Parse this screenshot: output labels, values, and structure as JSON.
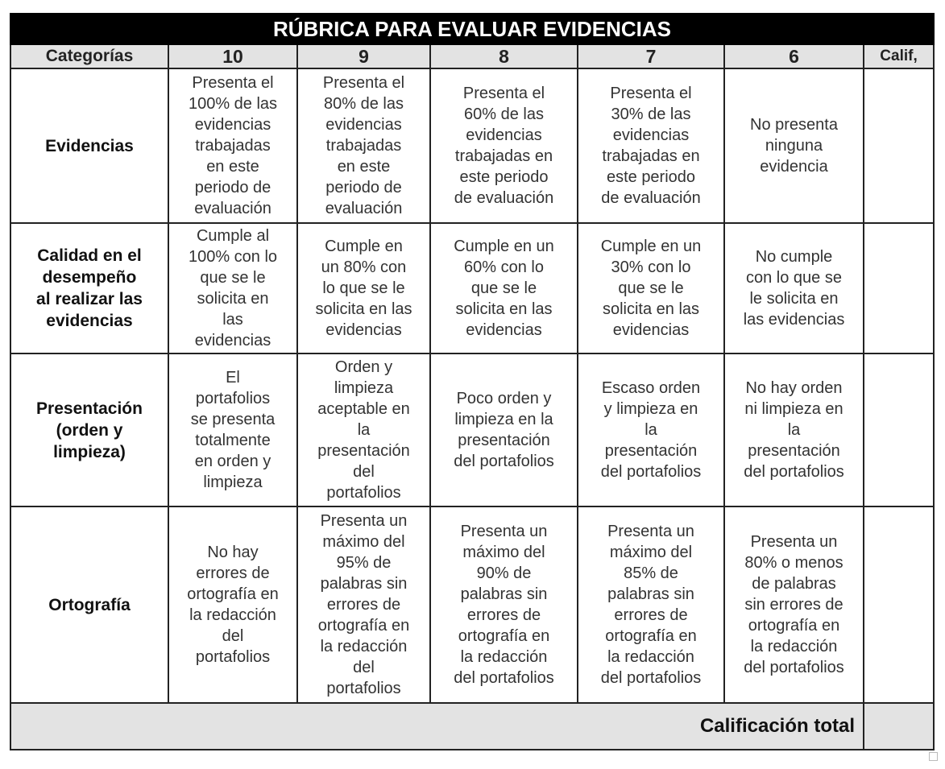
{
  "title": "RÚBRICA PARA EVALUAR EVIDENCIAS",
  "headers": [
    "Categorías",
    "10",
    "9",
    "8",
    "7",
    "6",
    "Calif,"
  ],
  "rows": [
    {
      "category": "Evidencias",
      "cells": [
        "Presenta el\n100% de las\nevidencias\ntrabajadas\nen este\nperiodo de\nevaluación",
        "Presenta el\n80% de las\nevidencias\ntrabajadas\nen este\nperiodo de\nevaluación",
        "Presenta el\n60% de las\nevidencias\ntrabajadas en\neste periodo\nde evaluación",
        "Presenta el\n30% de las\nevidencias\ntrabajadas en\neste periodo\nde evaluación",
        "No presenta\nninguna\nevidencia"
      ],
      "calif": ""
    },
    {
      "category": "Calidad en el\ndesempeño\nal realizar las\nevidencias",
      "cells": [
        "Cumple al\n100% con lo\nque se le\nsolicita en\nlas\nevidencias",
        "Cumple en\nun 80% con\nlo que se le\nsolicita en las\nevidencias",
        "Cumple en un\n60% con lo\nque se le\nsolicita en las\nevidencias",
        "Cumple en un\n30% con lo\nque se le\nsolicita en las\nevidencias",
        "No cumple\ncon lo que se\nle solicita en\nlas evidencias"
      ],
      "calif": ""
    },
    {
      "category": "Presentación\n(orden y\nlimpieza)",
      "cells": [
        "El\nportafolios\nse presenta\ntotalmente\nen orden y\nlimpieza",
        "Orden y\nlimpieza\naceptable en\nla\npresentación\ndel\nportafolios",
        "Poco orden y\nlimpieza en la\npresentación\ndel portafolios",
        "Escaso orden\ny limpieza en\nla\npresentación\ndel portafolios",
        "No hay orden\nni limpieza en\nla\npresentación\ndel portafolios"
      ],
      "calif": ""
    },
    {
      "category": "Ortografía",
      "cells": [
        "No hay\nerrores de\nortografía en\nla redacción\ndel\nportafolios",
        "Presenta un\nmáximo del\n95% de\npalabras sin\nerrores de\nortografía en\nla redacción\ndel\nportafolios",
        "Presenta un\nmáximo del\n90% de\npalabras sin\nerrores de\nortografía en\nla redacción\ndel portafolios",
        "Presenta un\nmáximo del\n85% de\npalabras sin\nerrores de\nortografía en\nla redacción\ndel portafolios",
        "Presenta un\n80% o menos\nde palabras\nsin errores de\nortografía en\nla redacción\ndel portafolios"
      ],
      "calif": ""
    }
  ],
  "total_label": "Calificación total",
  "total_value": ""
}
